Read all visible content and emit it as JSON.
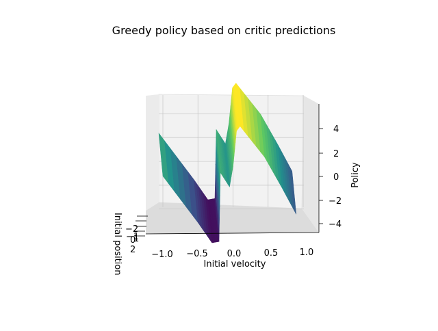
{
  "chart_data": {
    "type": "surface-3d",
    "title": "Greedy policy based on critic predictions",
    "xlabel": "Initial velocity",
    "ylabel": "Initial position",
    "zlabel": "Policy",
    "x_ticks": [
      "−1.0",
      "−0.5",
      "0.0",
      "0.5",
      "1.0"
    ],
    "y_ticks": [
      "−2",
      "−1",
      "0",
      "1",
      "2"
    ],
    "z_ticks": [
      "4",
      "2",
      "0",
      "−2",
      "−4"
    ],
    "xlim": [
      -1.0,
      1.0
    ],
    "ylim": [
      -2,
      2
    ],
    "zlim": [
      -5,
      5
    ],
    "colormap": "viridis",
    "profile": [
      {
        "x": -1.0,
        "z": 1.0
      },
      {
        "x": -0.5,
        "z": -2.9
      },
      {
        "x": -0.3,
        "z": -4.6
      },
      {
        "x": -0.2,
        "z": -4.5
      },
      {
        "x": -0.18,
        "z": 1.3
      },
      {
        "x": -0.05,
        "z": 0.1
      },
      {
        "x": 0.0,
        "z": 1.8
      },
      {
        "x": 0.05,
        "z": 4.8
      },
      {
        "x": 0.1,
        "z": 5.2
      },
      {
        "x": 0.45,
        "z": 2.6
      },
      {
        "x": 0.7,
        "z": 0.0
      },
      {
        "x": 0.9,
        "z": -2.2
      }
    ]
  }
}
